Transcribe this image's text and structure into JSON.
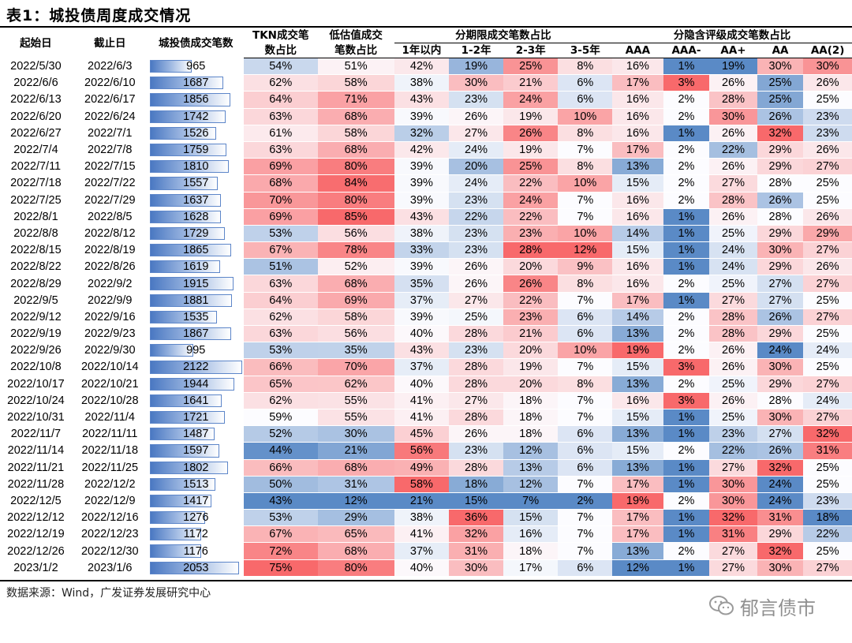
{
  "title": "表1：城投债周度成交情况",
  "headers": {
    "start": "起始日",
    "end": "截止日",
    "count": "城投债成交笔数",
    "tkn": [
      "TKN成交笔",
      "数占比"
    ],
    "lowval": [
      "低估值成交",
      "笔数占比"
    ],
    "term_group": "分期限成交笔数占比",
    "terms": [
      "1年以内",
      "1-2年",
      "2-3年",
      "3-5年"
    ],
    "rating_group": "分隐含评级成交笔数占比",
    "ratings": [
      "AAA",
      "AAA-",
      "AA+",
      "AA",
      "AA(2)"
    ]
  },
  "rows": [
    {
      "s": "2022/5/30",
      "e": "2022/6/3",
      "n": 965,
      "v": [
        54,
        51,
        42,
        19,
        25,
        8,
        16,
        1,
        19,
        30,
        30
      ]
    },
    {
      "s": "2022/6/6",
      "e": "2022/6/10",
      "n": 1687,
      "v": [
        62,
        58,
        38,
        30,
        21,
        6,
        17,
        3,
        26,
        25,
        26
      ]
    },
    {
      "s": "2022/6/13",
      "e": "2022/6/17",
      "n": 1856,
      "v": [
        64,
        71,
        43,
        23,
        24,
        6,
        16,
        2,
        28,
        25,
        25
      ]
    },
    {
      "s": "2022/6/20",
      "e": "2022/6/24",
      "n": 1742,
      "v": [
        63,
        68,
        39,
        26,
        19,
        10,
        16,
        2,
        30,
        26,
        23
      ]
    },
    {
      "s": "2022/6/27",
      "e": "2022/7/1",
      "n": 1526,
      "v": [
        61,
        58,
        32,
        27,
        26,
        8,
        16,
        1,
        26,
        32,
        23
      ]
    },
    {
      "s": "2022/7/4",
      "e": "2022/7/8",
      "n": 1759,
      "v": [
        63,
        68,
        42,
        24,
        19,
        7,
        17,
        2,
        22,
        29,
        26
      ]
    },
    {
      "s": "2022/7/11",
      "e": "2022/7/15",
      "n": 1810,
      "v": [
        69,
        80,
        39,
        20,
        25,
        8,
        13,
        2,
        26,
        29,
        27
      ]
    },
    {
      "s": "2022/7/18",
      "e": "2022/7/22",
      "n": 1557,
      "v": [
        68,
        84,
        39,
        24,
        22,
        10,
        15,
        2,
        27,
        28,
        25
      ]
    },
    {
      "s": "2022/7/25",
      "e": "2022/7/29",
      "n": 1637,
      "v": [
        70,
        80,
        39,
        23,
        24,
        7,
        16,
        2,
        28,
        26,
        25
      ]
    },
    {
      "s": "2022/8/1",
      "e": "2022/8/5",
      "n": 1628,
      "v": [
        69,
        85,
        43,
        22,
        22,
        7,
        16,
        1,
        26,
        28,
        26
      ]
    },
    {
      "s": "2022/8/8",
      "e": "2022/8/12",
      "n": 1729,
      "v": [
        53,
        56,
        38,
        23,
        23,
        10,
        14,
        1,
        25,
        29,
        29
      ]
    },
    {
      "s": "2022/8/15",
      "e": "2022/8/19",
      "n": 1865,
      "v": [
        67,
        78,
        33,
        23,
        28,
        12,
        15,
        1,
        24,
        30,
        27
      ]
    },
    {
      "s": "2022/8/22",
      "e": "2022/8/26",
      "n": 1619,
      "v": [
        51,
        52,
        39,
        26,
        20,
        9,
        16,
        1,
        24,
        29,
        26
      ]
    },
    {
      "s": "2022/8/29",
      "e": "2022/9/2",
      "n": 1915,
      "v": [
        63,
        68,
        35,
        26,
        26,
        8,
        16,
        2,
        25,
        27,
        27
      ]
    },
    {
      "s": "2022/9/5",
      "e": "2022/9/9",
      "n": 1881,
      "v": [
        64,
        69,
        37,
        27,
        22,
        7,
        17,
        1,
        27,
        27,
        25
      ]
    },
    {
      "s": "2022/9/12",
      "e": "2022/9/16",
      "n": 1535,
      "v": [
        62,
        58,
        39,
        25,
        23,
        6,
        14,
        2,
        28,
        26,
        27
      ]
    },
    {
      "s": "2022/9/19",
      "e": "2022/9/23",
      "n": 1867,
      "v": [
        63,
        56,
        40,
        28,
        21,
        6,
        13,
        2,
        28,
        29,
        25
      ]
    },
    {
      "s": "2022/9/26",
      "e": "2022/9/30",
      "n": 995,
      "v": [
        53,
        35,
        43,
        23,
        20,
        10,
        19,
        2,
        26,
        24,
        24
      ]
    },
    {
      "s": "2022/10/8",
      "e": "2022/10/14",
      "n": 2122,
      "v": [
        66,
        70,
        37,
        28,
        19,
        7,
        15,
        3,
        26,
        30,
        25
      ]
    },
    {
      "s": "2022/10/17",
      "e": "2022/10/21",
      "n": 1944,
      "v": [
        65,
        62,
        40,
        28,
        20,
        8,
        13,
        2,
        25,
        29,
        27
      ]
    },
    {
      "s": "2022/10/24",
      "e": "2022/10/28",
      "n": 1641,
      "v": [
        62,
        55,
        41,
        27,
        18,
        7,
        16,
        3,
        26,
        28,
        24
      ]
    },
    {
      "s": "2022/10/31",
      "e": "2022/11/4",
      "n": 1721,
      "v": [
        59,
        55,
        41,
        28,
        18,
        7,
        15,
        1,
        25,
        30,
        27
      ]
    },
    {
      "s": "2022/11/7",
      "e": "2022/11/11",
      "n": 1487,
      "v": [
        52,
        30,
        45,
        26,
        18,
        6,
        13,
        1,
        23,
        27,
        32
      ]
    },
    {
      "s": "2022/11/14",
      "e": "2022/11/18",
      "n": 1597,
      "v": [
        44,
        21,
        56,
        23,
        12,
        6,
        15,
        2,
        22,
        26,
        31
      ]
    },
    {
      "s": "2022/11/21",
      "e": "2022/11/25",
      "n": 1802,
      "v": [
        66,
        68,
        49,
        28,
        13,
        6,
        13,
        1,
        27,
        32,
        25
      ]
    },
    {
      "s": "2022/11/28",
      "e": "2022/12/2",
      "n": 1513,
      "v": [
        50,
        31,
        58,
        18,
        12,
        7,
        17,
        1,
        30,
        24,
        25
      ]
    },
    {
      "s": "2022/12/5",
      "e": "2022/12/9",
      "n": 1417,
      "v": [
        43,
        12,
        21,
        15,
        7,
        2,
        19,
        2,
        30,
        24,
        23
      ]
    },
    {
      "s": "2022/12/12",
      "e": "2022/12/16",
      "n": 1276,
      "v": [
        53,
        29,
        38,
        36,
        15,
        7,
        17,
        1,
        32,
        31,
        18
      ]
    },
    {
      "s": "2022/12/19",
      "e": "2022/12/23",
      "n": 1172,
      "v": [
        67,
        65,
        41,
        32,
        16,
        7,
        17,
        1,
        31,
        29,
        22
      ]
    },
    {
      "s": "2022/12/26",
      "e": "2022/12/30",
      "n": 1176,
      "v": [
        72,
        68,
        37,
        31,
        18,
        7,
        13,
        2,
        27,
        32,
        25
      ]
    },
    {
      "s": "2023/1/2",
      "e": "2023/1/6",
      "n": 2053,
      "v": [
        75,
        80,
        40,
        30,
        17,
        6,
        12,
        1,
        27,
        30,
        27
      ]
    }
  ],
  "source": "数据来源：Wind，广发证券发展研究中心",
  "watermark": "郁言债市",
  "colors": {
    "high": "#f8696b",
    "mid": "#fcfcff",
    "low": "#5a8ac6",
    "bar": "#5d86c9"
  },
  "icons": {
    "watermark": "wechat-icon"
  }
}
